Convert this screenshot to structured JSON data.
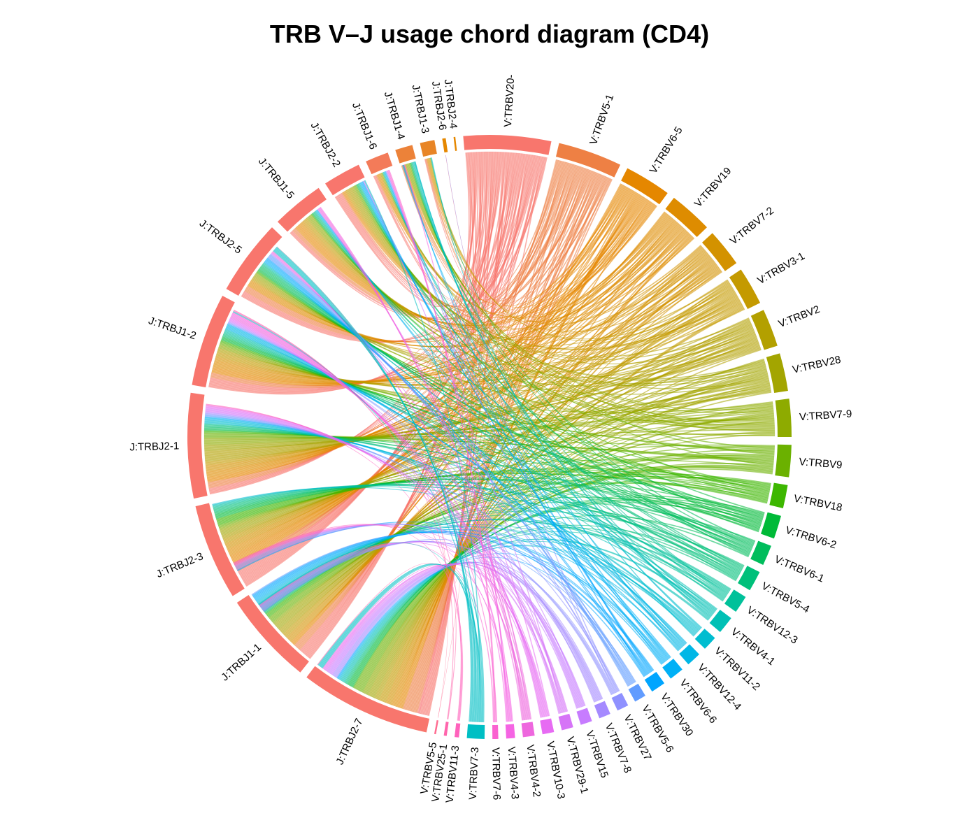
{
  "title": "TRB V–J usage chord diagram (CD4)",
  "chart_data": {
    "type": "chord",
    "direction": "clockwise",
    "sectors": [
      {
        "id": "V20",
        "label": "V:TRBV20-",
        "group": "V",
        "weight": 30,
        "color": "#F8766D"
      },
      {
        "id": "V5-1",
        "label": "V:TRBV5-1",
        "group": "V",
        "weight": 22,
        "color": "#EE8044"
      },
      {
        "id": "V6-5",
        "label": "V:TRBV6-5",
        "group": "V",
        "weight": 16,
        "color": "#E58700"
      },
      {
        "id": "V19",
        "label": "V:TRBV19",
        "group": "V",
        "weight": 15,
        "color": "#DE8C00"
      },
      {
        "id": "V7-2",
        "label": "V:TRBV7-2",
        "group": "V",
        "weight": 13,
        "color": "#D39200"
      },
      {
        "id": "V3-1",
        "label": "V:TRBV3-1",
        "group": "V",
        "weight": 13,
        "color": "#C49A00"
      },
      {
        "id": "V2",
        "label": "V:TRBV2",
        "group": "V",
        "weight": 13,
        "color": "#B3A000"
      },
      {
        "id": "V28",
        "label": "V:TRBV28",
        "group": "V",
        "weight": 13,
        "color": "#A3A500"
      },
      {
        "id": "V7-9",
        "label": "V:TRBV7-9",
        "group": "V",
        "weight": 13,
        "color": "#8EAB00"
      },
      {
        "id": "V9",
        "label": "V:TRBV9",
        "group": "V",
        "weight": 11,
        "color": "#6BB100"
      },
      {
        "id": "V18",
        "label": "V:TRBV18",
        "group": "V",
        "weight": 8,
        "color": "#3DB700"
      },
      {
        "id": "V6-2",
        "label": "V:TRBV6-2",
        "group": "V",
        "weight": 8,
        "color": "#00BA38"
      },
      {
        "id": "V6-1",
        "label": "V:TRBV6-1",
        "group": "V",
        "weight": 7,
        "color": "#00BD5C"
      },
      {
        "id": "V5-4",
        "label": "V:TRBV5-4",
        "group": "V",
        "weight": 7,
        "color": "#00C07A"
      },
      {
        "id": "V12-3",
        "label": "V:TRBV12-3",
        "group": "V",
        "weight": 6,
        "color": "#00C19A"
      },
      {
        "id": "V4-1",
        "label": "V:TRBV4-1",
        "group": "V",
        "weight": 6,
        "color": "#00C0B5"
      },
      {
        "id": "V11-2",
        "label": "V:TRBV11-2",
        "group": "V",
        "weight": 5,
        "color": "#00BDD0"
      },
      {
        "id": "V12-4",
        "label": "V:TRBV12-4",
        "group": "V",
        "weight": 5,
        "color": "#00B7E6"
      },
      {
        "id": "V6-6",
        "label": "V:TRBV6-6",
        "group": "V",
        "weight": 5,
        "color": "#00B0F6"
      },
      {
        "id": "V30",
        "label": "V:TRBV30",
        "group": "V",
        "weight": 5,
        "color": "#00A5FF"
      },
      {
        "id": "V5-6",
        "label": "V:TRBV5-6",
        "group": "V",
        "weight": 4,
        "color": "#619CFF"
      },
      {
        "id": "V27",
        "label": "V:TRBV27",
        "group": "V",
        "weight": 4,
        "color": "#8F91FF"
      },
      {
        "id": "V7-8",
        "label": "V:TRBV7-8",
        "group": "V",
        "weight": 4,
        "color": "#A58AFF"
      },
      {
        "id": "V15",
        "label": "V:TRBV15",
        "group": "V",
        "weight": 4,
        "color": "#C77CFF"
      },
      {
        "id": "V29-1",
        "label": "V:TRBV29-1",
        "group": "V",
        "weight": 4,
        "color": "#D674F7"
      },
      {
        "id": "V10-3",
        "label": "V:TRBV10-3",
        "group": "V",
        "weight": 4,
        "color": "#E76BF3"
      },
      {
        "id": "V4-2",
        "label": "V:TRBV4-2",
        "group": "V",
        "weight": 4,
        "color": "#EE67DE"
      },
      {
        "id": "V4-3",
        "label": "V:TRBV4-3",
        "group": "V",
        "weight": 3,
        "color": "#F564E3"
      },
      {
        "id": "V7-6",
        "label": "V:TRBV7-6",
        "group": "V",
        "weight": 2,
        "color": "#FA62D0"
      },
      {
        "id": "V7-3",
        "label": "V:TRBV7-3",
        "group": "V",
        "weight": 6,
        "color": "#00BFC4"
      },
      {
        "id": "V11-3",
        "label": "V:TRBV11-3",
        "group": "V",
        "weight": 1.5,
        "color": "#FF62BC"
      },
      {
        "id": "V25-1",
        "label": "V:TRBV25-1",
        "group": "V",
        "weight": 1,
        "color": "#FF65AC"
      },
      {
        "id": "V5-5",
        "label": "V:TRBV5-5",
        "group": "V",
        "weight": 0.6,
        "color": "#FF6C91"
      },
      {
        "id": "J2-7",
        "label": "J:TRBJ2-7",
        "group": "J",
        "weight": 45,
        "color": "#F8766D"
      },
      {
        "id": "J1-1",
        "label": "J:TRBJ1-1",
        "group": "J",
        "weight": 32,
        "color": "#F8766D"
      },
      {
        "id": "J2-3",
        "label": "J:TRBJ2-3",
        "group": "J",
        "weight": 33,
        "color": "#F8766D"
      },
      {
        "id": "J2-1",
        "label": "J:TRBJ2-1",
        "group": "J",
        "weight": 36,
        "color": "#F8766D"
      },
      {
        "id": "J1-2",
        "label": "J:TRBJ1-2",
        "group": "J",
        "weight": 32,
        "color": "#F8766D"
      },
      {
        "id": "J2-5",
        "label": "J:TRBJ2-5",
        "group": "J",
        "weight": 26,
        "color": "#F8766D"
      },
      {
        "id": "J1-5",
        "label": "J:TRBJ1-5",
        "group": "J",
        "weight": 18,
        "color": "#F8766D"
      },
      {
        "id": "J2-2",
        "label": "J:TRBJ2-2",
        "group": "J",
        "weight": 13,
        "color": "#F8766D"
      },
      {
        "id": "J1-6",
        "label": "J:TRBJ1-6",
        "group": "J",
        "weight": 8,
        "color": "#F37B59"
      },
      {
        "id": "J1-4",
        "label": "J:TRBJ1-4",
        "group": "J",
        "weight": 6,
        "color": "#EC8239"
      },
      {
        "id": "J1-3",
        "label": "J:TRBJ1-3",
        "group": "J",
        "weight": 5,
        "color": "#E88526"
      },
      {
        "id": "J2-6",
        "label": "J:TRBJ2-6",
        "group": "J",
        "weight": 1.2,
        "color": "#E58700"
      },
      {
        "id": "J2-4",
        "label": "J:TRBJ2-4",
        "group": "J",
        "weight": 0.6,
        "color": "#E58700"
      }
    ]
  }
}
